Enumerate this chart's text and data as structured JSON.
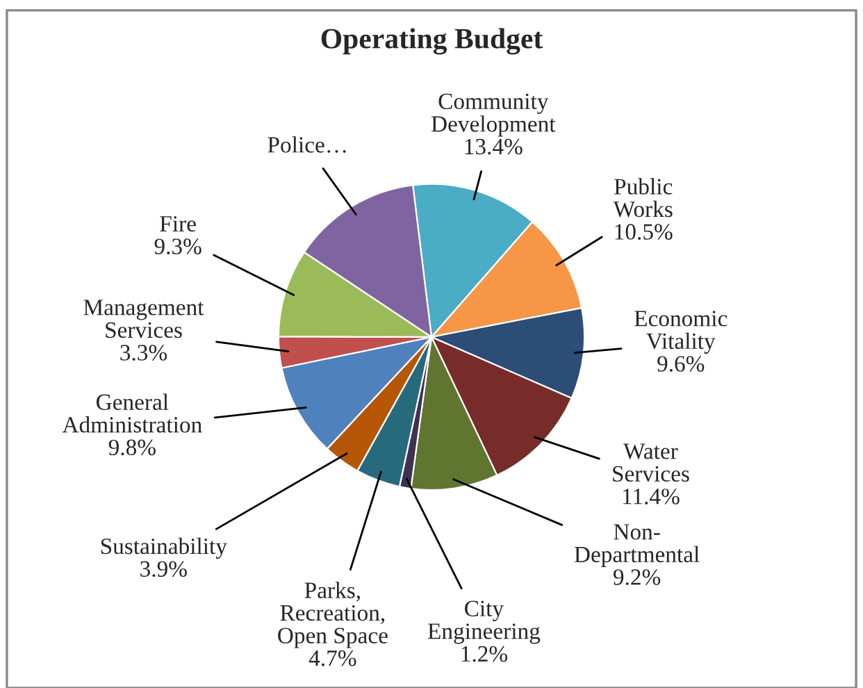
{
  "chart_data": {
    "type": "pie",
    "title": "Operating Budget",
    "categories": [
      "Community\nDevelopment",
      "Public\nWorks",
      "Economic\nVitality",
      "Water\nServices",
      "Non-\nDepartmental",
      "City\nEngineering",
      "Parks,\nRecreation,\nOpen Space",
      "Sustainability",
      "General\nAdministration",
      "Management\nServices",
      "Fire",
      "Police…"
    ],
    "values": [
      13.4,
      10.5,
      9.6,
      11.4,
      9.2,
      1.2,
      4.7,
      3.9,
      9.8,
      3.3,
      9.3,
      13.7
    ],
    "value_labels": [
      "13.4%",
      "10.5%",
      "9.6%",
      "11.4%",
      "9.2%",
      "1.2%",
      "4.7%",
      "3.9%",
      "9.8%",
      "3.3%",
      "9.3%",
      null
    ],
    "colors": [
      "#4bacc6",
      "#f79646",
      "#2c4d75",
      "#772c2a",
      "#5f7530",
      "#403152",
      "#276a7c",
      "#b65708",
      "#4f81bd",
      "#c0504d",
      "#9bbb59",
      "#8064a2"
    ],
    "legend": false
  }
}
